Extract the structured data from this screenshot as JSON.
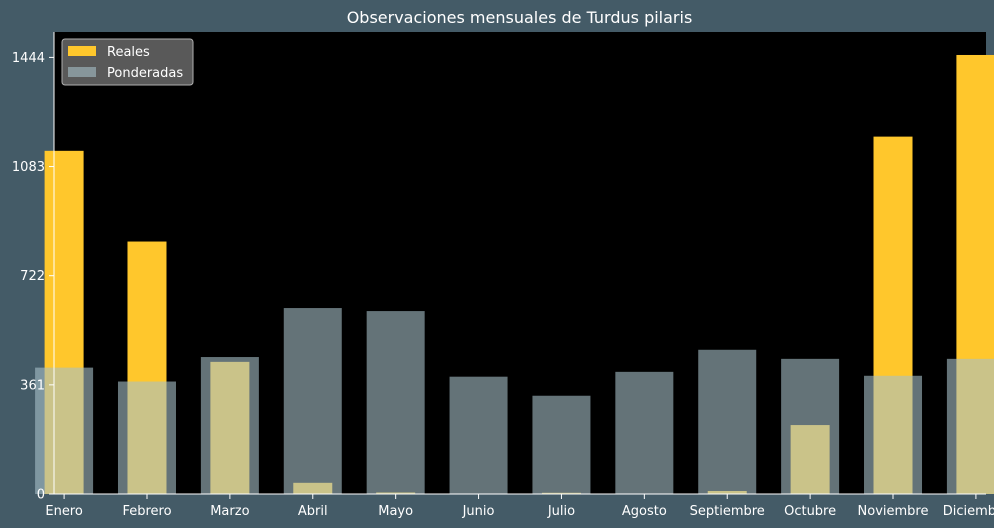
{
  "chart_data": {
    "type": "bar",
    "title": "Observaciones mensuales de Turdus pilaris",
    "xlabel": "",
    "ylabel": "",
    "categories": [
      "Enero",
      "Febrero",
      "Marzo",
      "Abril",
      "Mayo",
      "Junio",
      "Julio",
      "Agosto",
      "Septiembre",
      "Octubre",
      "Noviembre",
      "Diciembre"
    ],
    "series": [
      {
        "name": "Reales",
        "values": [
          1135,
          835,
          437,
          37,
          5,
          0,
          4,
          0,
          10,
          228,
          1182,
          1452
        ],
        "color": "#ffc72c"
      },
      {
        "name": "Ponderadas",
        "values": [
          418,
          372,
          453,
          615,
          605,
          388,
          325,
          404,
          477,
          447,
          391,
          447
        ],
        "color": "#a7c0c8"
      }
    ],
    "yticks": [
      0,
      361,
      722,
      1083,
      1444
    ],
    "ylim": [
      0,
      1528
    ],
    "grid": false,
    "legend_position": "upper left",
    "colors": {
      "figure_background": "#445b67",
      "axes_background": "#000000",
      "text": "#ffffff"
    }
  }
}
